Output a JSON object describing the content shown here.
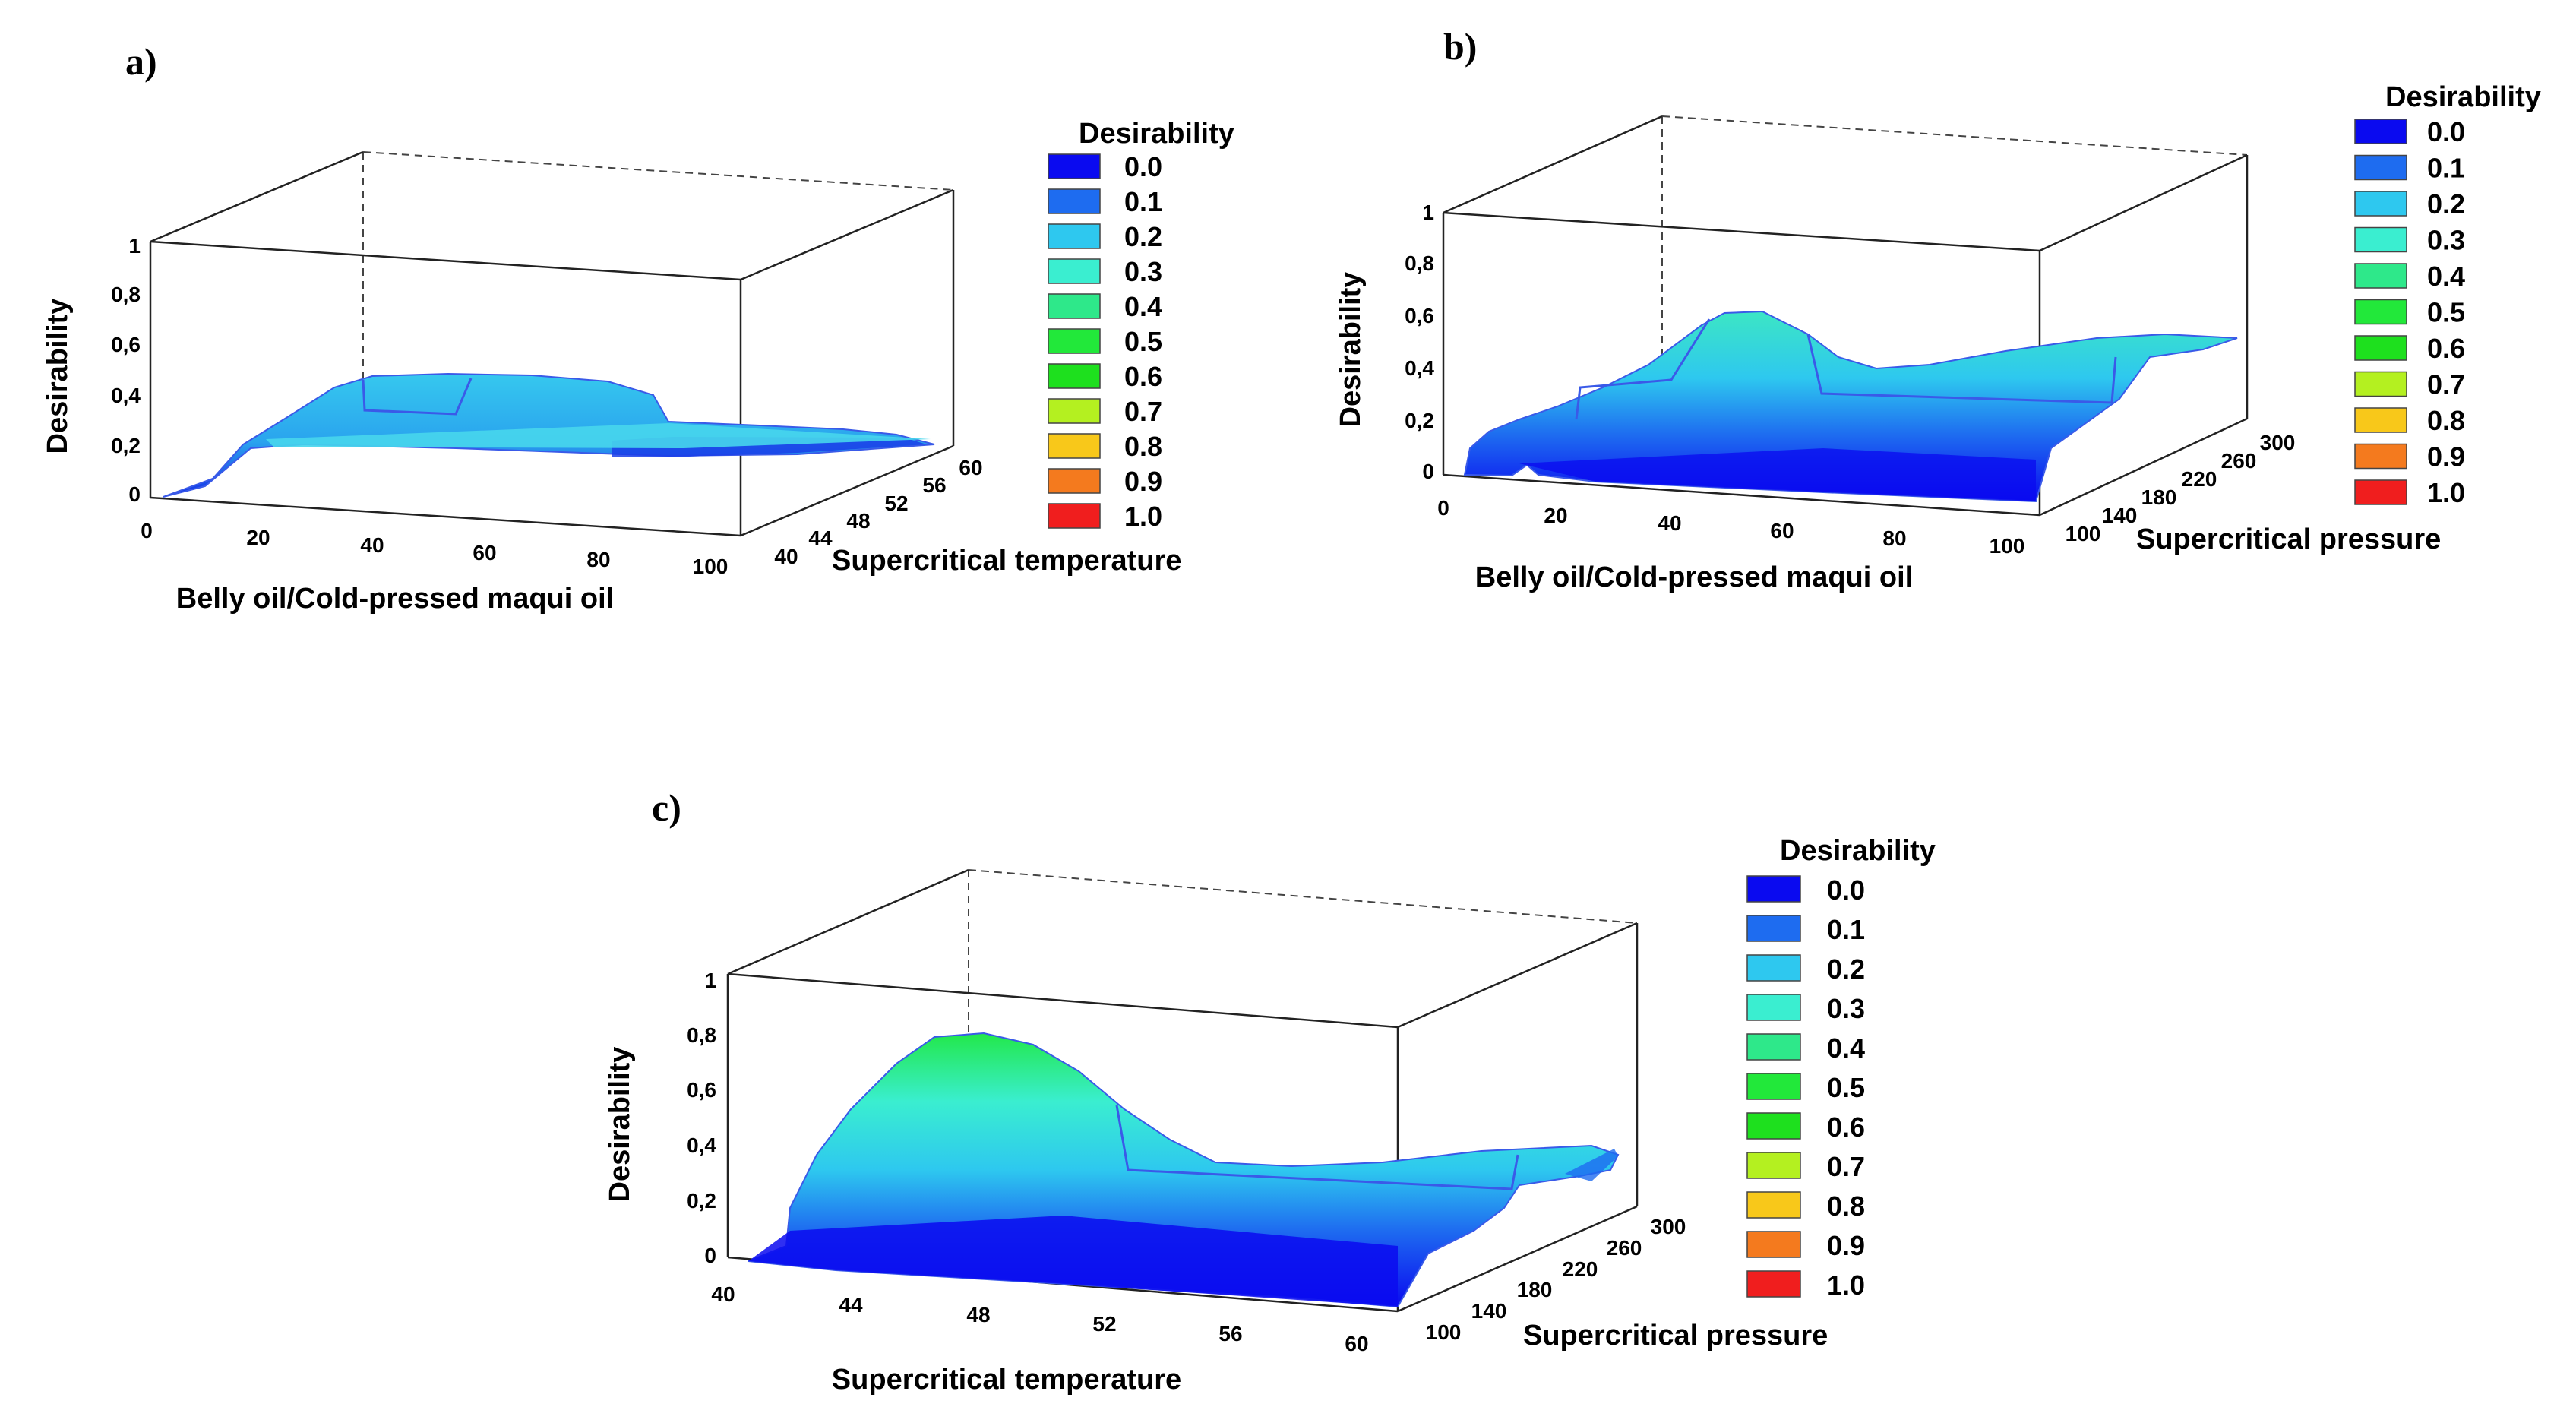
{
  "chart_data": [
    {
      "panel": "a)",
      "type": "surface",
      "zlabel": "Desirability",
      "xlabel": "Belly oil/Cold-pressed maqui oil",
      "ylabel": "Supercritical temperature",
      "z_ticks": [
        "0",
        "0,2",
        "0,4",
        "0,6",
        "0,8",
        "1"
      ],
      "x_ticks": [
        "0",
        "20",
        "40",
        "60",
        "80",
        "100"
      ],
      "y_ticks": [
        "40",
        "44",
        "48",
        "52",
        "56",
        "60"
      ],
      "zlim": [
        0,
        1
      ],
      "ridge": {
        "x": [
          0,
          10,
          20,
          30,
          40,
          50,
          60,
          70,
          80,
          90,
          100
        ],
        "z": [
          0.0,
          0.05,
          0.28,
          0.4,
          0.46,
          0.47,
          0.46,
          0.44,
          0.4,
          0.28,
          0.25
        ]
      },
      "legend": {
        "title": "Desirability",
        "labels": [
          "0.0",
          "0.1",
          "0.2",
          "0.3",
          "0.4",
          "0.5",
          "0.6",
          "0.7",
          "0.8",
          "0.9",
          "1.0"
        ]
      }
    },
    {
      "panel": "b)",
      "type": "surface",
      "zlabel": "Desirability",
      "xlabel": "Belly oil/Cold-pressed maqui oil",
      "ylabel": "Supercritical pressure",
      "z_ticks": [
        "0",
        "0,2",
        "0,4",
        "0,6",
        "0,8",
        "1"
      ],
      "x_ticks": [
        "0",
        "20",
        "40",
        "60",
        "80",
        "100"
      ],
      "y_ticks": [
        "100",
        "140",
        "180",
        "220",
        "260",
        "300"
      ],
      "zlim": [
        0,
        1
      ],
      "ridge": {
        "x": [
          0,
          10,
          20,
          30,
          40,
          50,
          60,
          70,
          80,
          90,
          100
        ],
        "z": [
          0.1,
          0.22,
          0.28,
          0.36,
          0.5,
          0.62,
          0.52,
          0.4,
          0.36,
          0.4,
          0.5
        ]
      },
      "legend": {
        "title": "Desirability",
        "labels": [
          "0.0",
          "0.1",
          "0.2",
          "0.3",
          "0.4",
          "0.5",
          "0.6",
          "0.7",
          "0.8",
          "0.9",
          "1.0"
        ]
      }
    },
    {
      "panel": "c)",
      "type": "surface",
      "zlabel": "Desirability",
      "xlabel": "Supercritical temperature",
      "ylabel": "Supercritical pressure",
      "z_ticks": [
        "0",
        "0,2",
        "0,4",
        "0,6",
        "0,8",
        "1"
      ],
      "x_ticks": [
        "40",
        "44",
        "48",
        "52",
        "56",
        "60"
      ],
      "y_ticks": [
        "100",
        "140",
        "180",
        "220",
        "260",
        "300"
      ],
      "zlim": [
        0,
        1
      ],
      "ridge": {
        "x": [
          40,
          42,
          44,
          46,
          48,
          50,
          52,
          54,
          56,
          58,
          60
        ],
        "z": [
          0.05,
          0.35,
          0.6,
          0.76,
          0.82,
          0.74,
          0.56,
          0.42,
          0.38,
          0.38,
          0.4
        ]
      },
      "legend": {
        "title": "Desirability",
        "labels": [
          "0.0",
          "0.1",
          "0.2",
          "0.3",
          "0.4",
          "0.5",
          "0.6",
          "0.7",
          "0.8",
          "0.9",
          "1.0"
        ]
      }
    }
  ],
  "colors": {
    "scale": [
      "#0a0af0",
      "#1e6cf0",
      "#2ec8ef",
      "#3aeed0",
      "#2ee88a",
      "#22e83a",
      "#1ee01e",
      "#b4f020",
      "#f8c81a",
      "#f47a1e",
      "#f01e1e"
    ]
  }
}
